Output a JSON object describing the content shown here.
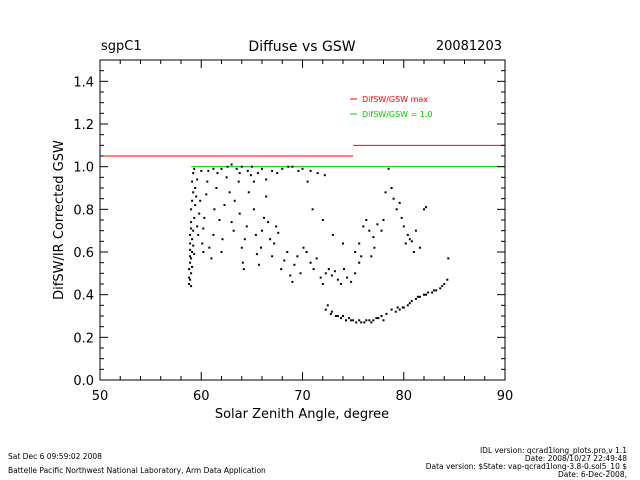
{
  "header": {
    "site": "sgpC1",
    "title": "Diffuse vs GSW",
    "date": "20081203"
  },
  "footer": {
    "left_line1": "Sat Dec  6 09:59:02 2008",
    "left_line2": "Battelle Pacific Northwest National Laboratory, Arm Data Application",
    "right_line1": "IDL version: qcrad1long_plots.pro,v 1.1",
    "right_line2": "Date: 2008/10/27 22:49:48",
    "right_line3": "Data version: $State: vap-qcrad1long-3.8-0.sol5_10 $",
    "right_line4": "Date: 6-Dec-2008,"
  },
  "chart_data": {
    "type": "scatter",
    "xlabel": "Solar Zenith Angle, degree",
    "ylabel": "DifSW/IR Corrected GSW",
    "xlim": [
      50,
      90
    ],
    "ylim": [
      0.0,
      1.5
    ],
    "xticks": [
      "50",
      "60",
      "70",
      "80",
      "90"
    ],
    "yticks": [
      "0.0",
      "0.2",
      "0.4",
      "0.6",
      "0.8",
      "1.0",
      "1.2",
      "1.4"
    ],
    "colors": {
      "max_line": "#ff0000",
      "unity_line": "#00cc00",
      "points": "#000000"
    },
    "legend": [
      {
        "label": "DifSW/GSW  max",
        "color": "#ff0000"
      },
      {
        "label": "DifSW/GSW = 1.0",
        "color": "#00cc00"
      }
    ],
    "reference_lines": {
      "max_segments": [
        {
          "x": [
            50,
            75
          ],
          "y": 1.05
        },
        {
          "x": [
            75,
            90
          ],
          "y": 1.1
        }
      ],
      "unity": {
        "x": [
          59,
          90
        ],
        "y": 1.0
      }
    },
    "points": [
      [
        58.8,
        0.45
      ],
      [
        58.8,
        0.48
      ],
      [
        58.8,
        0.52
      ],
      [
        58.9,
        0.55
      ],
      [
        58.9,
        0.58
      ],
      [
        58.9,
        0.61
      ],
      [
        58.9,
        0.64
      ],
      [
        58.9,
        0.68
      ],
      [
        59.0,
        0.71
      ],
      [
        59.0,
        0.74
      ],
      [
        59.0,
        0.5
      ],
      [
        59.0,
        0.44
      ],
      [
        58.9,
        0.47
      ],
      [
        59.0,
        0.57
      ],
      [
        59.1,
        0.53
      ],
      [
        59.1,
        0.6
      ],
      [
        59.1,
        0.66
      ],
      [
        59.2,
        0.7
      ],
      [
        59.2,
        0.63
      ],
      [
        59.3,
        0.59
      ],
      [
        59.0,
        0.8
      ],
      [
        59.1,
        0.84
      ],
      [
        59.2,
        0.88
      ],
      [
        59.1,
        0.93
      ],
      [
        59.2,
        0.97
      ],
      [
        59.3,
        0.99
      ],
      [
        59.3,
        0.76
      ],
      [
        59.4,
        0.82
      ],
      [
        59.5,
        0.86
      ],
      [
        59.4,
        0.9
      ],
      [
        59.6,
        0.94
      ],
      [
        59.6,
        0.72
      ],
      [
        59.7,
        0.68
      ],
      [
        59.8,
        0.78
      ],
      [
        59.9,
        0.84
      ],
      [
        60.0,
        0.98
      ],
      [
        60.1,
        0.64
      ],
      [
        60.2,
        0.6
      ],
      [
        60.2,
        0.71
      ],
      [
        60.3,
        0.76
      ],
      [
        60.5,
        0.87
      ],
      [
        60.6,
        0.93
      ],
      [
        60.7,
        0.98
      ],
      [
        60.8,
        0.62
      ],
      [
        61.0,
        0.57
      ],
      [
        61.2,
        0.68
      ],
      [
        61.3,
        0.8
      ],
      [
        61.5,
        0.9
      ],
      [
        61.6,
        0.97
      ],
      [
        61.8,
        0.75
      ],
      [
        62.0,
        0.6
      ],
      [
        62.1,
        0.66
      ],
      [
        62.3,
        0.82
      ],
      [
        62.5,
        0.95
      ],
      [
        62.6,
        1.0
      ],
      [
        62.8,
        0.88
      ],
      [
        63.0,
        0.74
      ],
      [
        63.2,
        0.7
      ],
      [
        63.3,
        0.84
      ],
      [
        63.5,
        0.99
      ],
      [
        63.7,
        0.93
      ],
      [
        63.8,
        0.78
      ],
      [
        64.0,
        0.62
      ],
      [
        64.1,
        0.55
      ],
      [
        64.2,
        0.52
      ],
      [
        64.3,
        0.66
      ],
      [
        64.5,
        0.72
      ],
      [
        64.7,
        0.88
      ],
      [
        64.9,
        0.96
      ],
      [
        65.0,
        1.0
      ],
      [
        65.2,
        0.8
      ],
      [
        65.4,
        0.68
      ],
      [
        65.5,
        0.59
      ],
      [
        65.7,
        0.54
      ],
      [
        65.9,
        0.62
      ],
      [
        66.0,
        0.7
      ],
      [
        66.2,
        0.76
      ],
      [
        66.4,
        0.86
      ],
      [
        66.6,
        0.74
      ],
      [
        66.8,
        0.66
      ],
      [
        67.0,
        0.58
      ],
      [
        67.2,
        0.64
      ],
      [
        67.4,
        0.72
      ],
      [
        67.6,
        0.69
      ],
      [
        67.9,
        0.52
      ],
      [
        68.2,
        0.56
      ],
      [
        68.5,
        0.6
      ],
      [
        68.8,
        0.49
      ],
      [
        69.0,
        0.46
      ],
      [
        69.2,
        0.54
      ],
      [
        69.5,
        0.58
      ],
      [
        69.8,
        0.5
      ],
      [
        70.1,
        0.62
      ],
      [
        70.4,
        0.6
      ],
      [
        70.8,
        0.55
      ],
      [
        71.1,
        0.52
      ],
      [
        71.4,
        0.57
      ],
      [
        71.8,
        0.48
      ],
      [
        72.0,
        0.45
      ],
      [
        72.3,
        0.5
      ],
      [
        72.6,
        0.52
      ],
      [
        72.9,
        0.49
      ],
      [
        73.2,
        0.51
      ],
      [
        73.5,
        0.47
      ],
      [
        73.8,
        0.45
      ],
      [
        74.1,
        0.52
      ],
      [
        74.4,
        0.48
      ],
      [
        74.8,
        0.46
      ],
      [
        75.2,
        0.5
      ],
      [
        75.6,
        0.55
      ],
      [
        62.0,
        0.99
      ],
      [
        63.0,
        1.01
      ],
      [
        64.0,
        1.0
      ],
      [
        66.0,
        0.99
      ],
      [
        67.0,
        0.98
      ],
      [
        67.5,
        0.97
      ],
      [
        68.0,
        0.99
      ],
      [
        69.0,
        1.0
      ],
      [
        70.0,
        0.99
      ],
      [
        70.8,
        0.98
      ],
      [
        71.5,
        0.97
      ],
      [
        72.2,
        0.96
      ],
      [
        61.2,
        0.99
      ],
      [
        63.8,
        0.97
      ],
      [
        64.6,
        0.98
      ],
      [
        65.6,
        0.97
      ],
      [
        68.6,
        1.0
      ],
      [
        69.6,
        0.98
      ],
      [
        66.4,
        0.94
      ],
      [
        65.2,
        0.93
      ],
      [
        70.5,
        0.93
      ],
      [
        71.0,
        0.8
      ],
      [
        72.0,
        0.75
      ],
      [
        73.0,
        0.68
      ],
      [
        74.0,
        0.64
      ],
      [
        72.3,
        0.33
      ],
      [
        72.8,
        0.31
      ],
      [
        73.3,
        0.3
      ],
      [
        73.8,
        0.29
      ],
      [
        74.3,
        0.28
      ],
      [
        74.8,
        0.28
      ],
      [
        75.3,
        0.27
      ],
      [
        75.8,
        0.27
      ],
      [
        76.3,
        0.28
      ],
      [
        76.8,
        0.27
      ],
      [
        77.3,
        0.29
      ],
      [
        77.8,
        0.3
      ],
      [
        72.5,
        0.35
      ],
      [
        72.9,
        0.32
      ],
      [
        73.5,
        0.3
      ],
      [
        74.0,
        0.3
      ],
      [
        74.6,
        0.29
      ],
      [
        75.0,
        0.28
      ],
      [
        75.6,
        0.28
      ],
      [
        76.1,
        0.27
      ],
      [
        76.6,
        0.28
      ],
      [
        77.0,
        0.28
      ],
      [
        77.5,
        0.29
      ],
      [
        78.0,
        0.28
      ],
      [
        78.3,
        0.31
      ],
      [
        78.8,
        0.33
      ],
      [
        79.2,
        0.32
      ],
      [
        79.6,
        0.33
      ],
      [
        80.0,
        0.34
      ],
      [
        80.4,
        0.35
      ],
      [
        80.8,
        0.37
      ],
      [
        81.2,
        0.38
      ],
      [
        81.6,
        0.39
      ],
      [
        82.0,
        0.4
      ],
      [
        82.4,
        0.41
      ],
      [
        82.8,
        0.41
      ],
      [
        83.2,
        0.42
      ],
      [
        83.6,
        0.43
      ],
      [
        84.0,
        0.45
      ],
      [
        84.3,
        0.47
      ],
      [
        84.4,
        0.57
      ],
      [
        79.4,
        0.34
      ],
      [
        79.9,
        0.34
      ],
      [
        80.6,
        0.36
      ],
      [
        81.4,
        0.39
      ],
      [
        82.2,
        0.4
      ],
      [
        83.0,
        0.42
      ],
      [
        83.8,
        0.44
      ],
      [
        75.2,
        0.6
      ],
      [
        75.6,
        0.64
      ],
      [
        76.0,
        0.72
      ],
      [
        76.3,
        0.75
      ],
      [
        76.6,
        0.7
      ],
      [
        77.0,
        0.67
      ],
      [
        77.4,
        0.73
      ],
      [
        77.8,
        0.7
      ],
      [
        78.2,
        0.88
      ],
      [
        78.5,
        0.99
      ],
      [
        78.8,
        0.9
      ],
      [
        79.0,
        0.85
      ],
      [
        79.3,
        0.8
      ],
      [
        79.6,
        0.83
      ],
      [
        80.0,
        0.72
      ],
      [
        80.4,
        0.68
      ],
      [
        80.8,
        0.65
      ],
      [
        81.2,
        0.7
      ],
      [
        81.6,
        0.62
      ],
      [
        82.0,
        0.8
      ],
      [
        82.2,
        0.81
      ],
      [
        77.1,
        0.62
      ],
      [
        76.8,
        0.58
      ],
      [
        78.0,
        0.75
      ],
      [
        75.8,
        0.58
      ],
      [
        79.8,
        0.76
      ],
      [
        80.2,
        0.64
      ],
      [
        81.0,
        0.6
      ],
      [
        80.6,
        0.66
      ]
    ]
  }
}
